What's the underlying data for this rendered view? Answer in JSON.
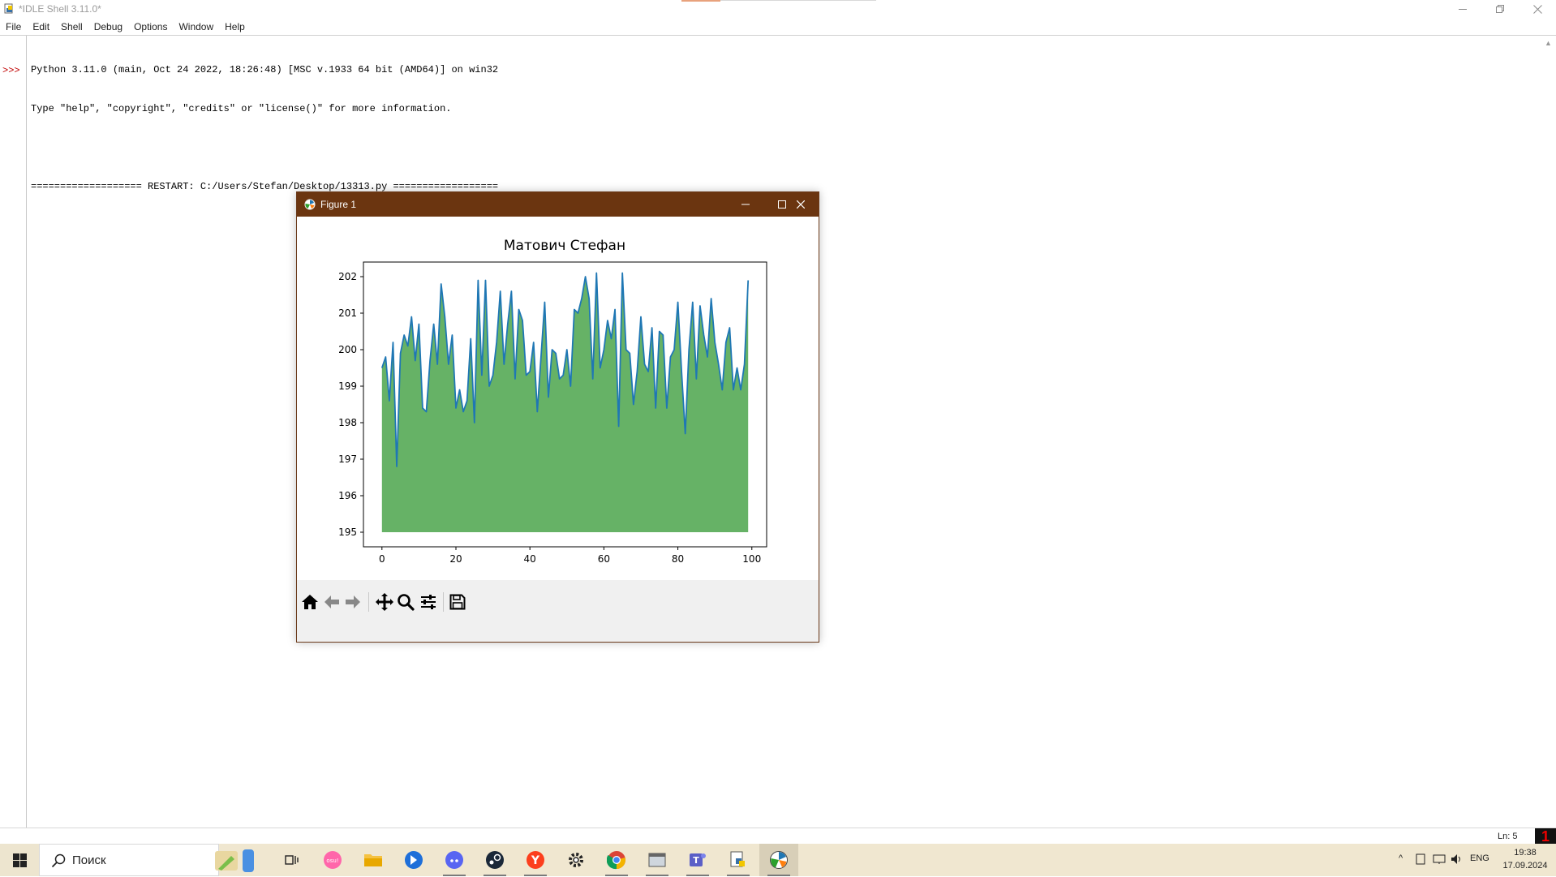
{
  "idle": {
    "title": "*IDLE Shell 3.11.0*",
    "menu": [
      "File",
      "Edit",
      "Shell",
      "Debug",
      "Options",
      "Window",
      "Help"
    ],
    "prompt": ">>>",
    "lines": [
      "Python 3.11.0 (main, Oct 24 2022, 18:26:48) [MSC v.1933 64 bit (AMD64)] on win32",
      "Type \"help\", \"copyright\", \"credits\" or \"license()\" for more information.",
      "",
      "=================== RESTART: C:/Users/Stefan/Desktop/13313.py =================="
    ],
    "status": "Ln: 5",
    "badge": "1"
  },
  "figure": {
    "title": "Figure 1",
    "toolbar": [
      "home-icon",
      "back-icon",
      "forward-icon",
      "pan-icon",
      "zoom-icon",
      "configure-icon",
      "save-icon"
    ]
  },
  "chart_data": {
    "type": "area",
    "title": "Матович Стефан",
    "xlabel": "",
    "ylabel": "",
    "xlim": [
      -5,
      104
    ],
    "ylim": [
      194.6,
      202.4
    ],
    "fill_baseline": 195,
    "line_color": "#1f77b4",
    "fill_color": "#66b266",
    "xticks": [
      0,
      20,
      40,
      60,
      80,
      100
    ],
    "yticks": [
      195,
      196,
      197,
      198,
      199,
      200,
      201,
      202
    ],
    "x": [
      0,
      1,
      2,
      3,
      4,
      5,
      6,
      7,
      8,
      9,
      10,
      11,
      12,
      13,
      14,
      15,
      16,
      17,
      18,
      19,
      20,
      21,
      22,
      23,
      24,
      25,
      26,
      27,
      28,
      29,
      30,
      31,
      32,
      33,
      34,
      35,
      36,
      37,
      38,
      39,
      40,
      41,
      42,
      43,
      44,
      45,
      46,
      47,
      48,
      49,
      50,
      51,
      52,
      53,
      54,
      55,
      56,
      57,
      58,
      59,
      60,
      61,
      62,
      63,
      64,
      65,
      66,
      67,
      68,
      69,
      70,
      71,
      72,
      73,
      74,
      75,
      76,
      77,
      78,
      79,
      80,
      81,
      82,
      83,
      84,
      85,
      86,
      87,
      88,
      89,
      90,
      91,
      92,
      93,
      94,
      95,
      96,
      97,
      98,
      99
    ],
    "y": [
      199.5,
      199.8,
      198.6,
      200.2,
      196.8,
      199.9,
      200.4,
      200.1,
      200.9,
      199.7,
      200.7,
      198.4,
      198.3,
      199.7,
      200.7,
      199.6,
      201.8,
      200.9,
      199.6,
      200.4,
      198.4,
      198.9,
      198.3,
      198.6,
      200.3,
      198.0,
      201.9,
      199.3,
      201.9,
      199.0,
      199.3,
      200.2,
      201.6,
      199.6,
      200.7,
      201.6,
      199.2,
      201.1,
      200.8,
      199.3,
      199.4,
      200.2,
      198.3,
      199.8,
      201.3,
      198.7,
      200.0,
      199.9,
      199.2,
      199.3,
      200.0,
      199.0,
      201.1,
      201.0,
      201.4,
      202.0,
      201.4,
      199.2,
      202.1,
      199.5,
      200.0,
      200.8,
      200.3,
      201.1,
      197.9,
      202.1,
      200.0,
      199.9,
      198.5,
      199.4,
      200.9,
      199.6,
      199.4,
      200.6,
      198.4,
      200.5,
      200.4,
      198.4,
      199.8,
      200.0,
      201.3,
      199.4,
      197.7,
      200.0,
      201.3,
      199.2,
      201.2,
      200.4,
      199.8,
      201.4,
      200.2,
      199.6,
      198.9,
      200.2,
      200.6,
      198.9,
      199.5,
      198.9,
      199.6,
      201.9
    ]
  },
  "taskbar": {
    "search_text": "Поиск",
    "apps": [
      "task-view",
      "osu",
      "file-explorer",
      "app-blue",
      "discord",
      "steam",
      "yandex",
      "settings",
      "chrome",
      "app-gray",
      "teams",
      "python-installer",
      "matplotlib-figure"
    ],
    "lang": "ENG",
    "time": "19:38",
    "date": "17.09.2024"
  }
}
